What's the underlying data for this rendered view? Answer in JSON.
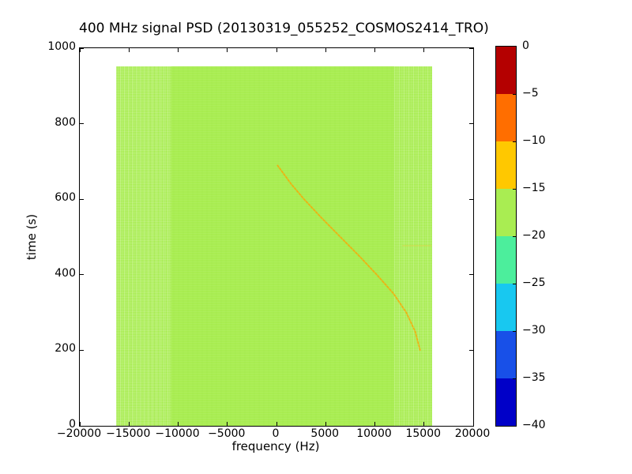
{
  "chart_data": {
    "type": "heatmap",
    "title": "400 MHz signal PSD (20130319_055252_COSMOS2414_TRO)",
    "xlabel": "frequency (Hz)",
    "ylabel": "time (s)",
    "xlim": [
      -20000,
      20000
    ],
    "ylim": [
      0,
      1000
    ],
    "x_ticks": [
      "−20000",
      "−15000",
      "−10000",
      "−5000",
      "0",
      "5000",
      "10000",
      "15000",
      "20000"
    ],
    "y_ticks": [
      "0",
      "200",
      "400",
      "600",
      "800",
      "1000"
    ],
    "grid": false,
    "colorbar": {
      "position": "right",
      "range_db": [
        -40,
        0
      ],
      "ticks": [
        "0",
        "−5",
        "−10",
        "−15",
        "−20",
        "−25",
        "−30",
        "−35",
        "−40"
      ],
      "segment_colors_top_to_bottom": [
        "#b40000",
        "#ff6e00",
        "#ffc800",
        "#a9ed52",
        "#4cee9c",
        "#18c8f0",
        "#1850e8",
        "#0000c8"
      ]
    },
    "data_extent": {
      "freq_hz": [
        -16300,
        15800
      ],
      "time_s": [
        0,
        952
      ]
    },
    "background_value_db": -17,
    "background_color": "#a9ed52",
    "doppler_trace": {
      "description": "faint descending doppler chirp",
      "color": "#ffa500",
      "points_time_freq": [
        [
          690,
          100
        ],
        [
          640,
          1500
        ],
        [
          600,
          2800
        ],
        [
          550,
          4600
        ],
        [
          500,
          6500
        ],
        [
          450,
          8400
        ],
        [
          400,
          10200
        ],
        [
          350,
          11900
        ],
        [
          300,
          13200
        ],
        [
          250,
          14100
        ],
        [
          200,
          14600
        ]
      ]
    },
    "artifact_line": {
      "time_s": 477,
      "freq_hz": [
        12800,
        15750
      ],
      "color": "#e6c832"
    }
  }
}
